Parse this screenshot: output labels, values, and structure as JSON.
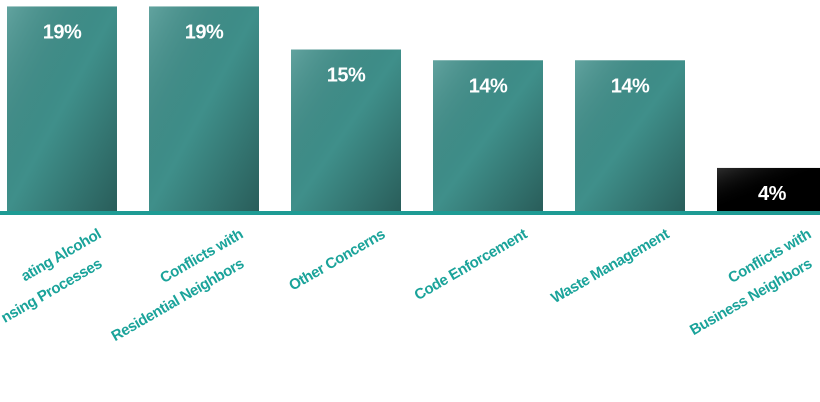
{
  "chart_data": {
    "type": "bar",
    "categories": [
      [
        "ating Alcohol",
        "nsing Processes"
      ],
      [
        "Conflicts with",
        "Residential Neighbors"
      ],
      [
        "Other Concerns"
      ],
      [
        "Code Enforcement"
      ],
      [
        "Waste Management"
      ],
      [
        "Conflicts with",
        "Business Neighbors"
      ]
    ],
    "values": [
      19,
      19,
      15,
      14,
      14,
      4
    ],
    "value_labels": [
      "19%",
      "19%",
      "15%",
      "14%",
      "14%",
      "4%"
    ],
    "colors": [
      "#3f8f8a",
      "#3f8f8a",
      "#3f8f8a",
      "#3f8f8a",
      "#3f8f8a",
      "#000000"
    ],
    "ylim": [
      0,
      19.6
    ]
  }
}
